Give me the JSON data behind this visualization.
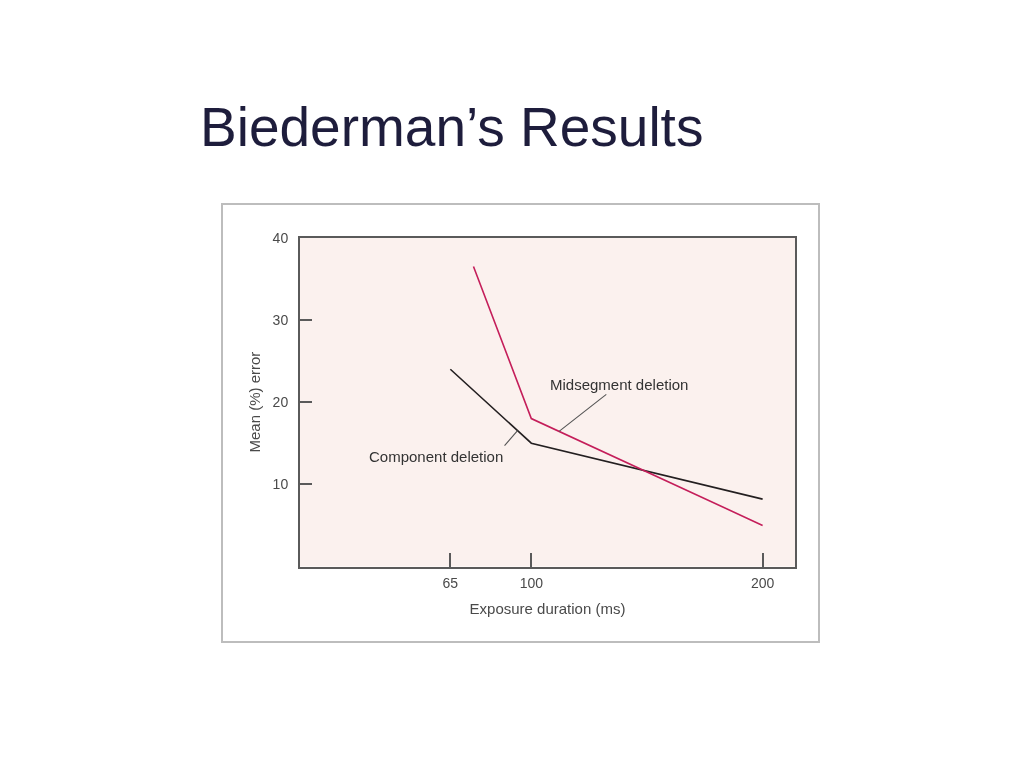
{
  "chart_data": {
    "type": "line",
    "title": "Biederman’s Results",
    "xlabel": "Exposure duration (ms)",
    "ylabel": "Mean (%) error",
    "xlim": [
      0,
      214
    ],
    "xticks": [
      65,
      100,
      200
    ],
    "ylim": [
      0,
      40
    ],
    "yticks": [
      10,
      20,
      30,
      40
    ],
    "grid": false,
    "legend": false,
    "marker": "none",
    "line_style": "solid",
    "series": [
      {
        "name": "Component deletion",
        "color": "#231f20",
        "x": [
          65,
          100,
          200
        ],
        "values": [
          24,
          15,
          8.2
        ]
      },
      {
        "name": "Midsegment deletion",
        "color": "#c41e5a",
        "x": [
          75,
          100,
          200
        ],
        "values": [
          36.5,
          18,
          5
        ]
      }
    ]
  }
}
